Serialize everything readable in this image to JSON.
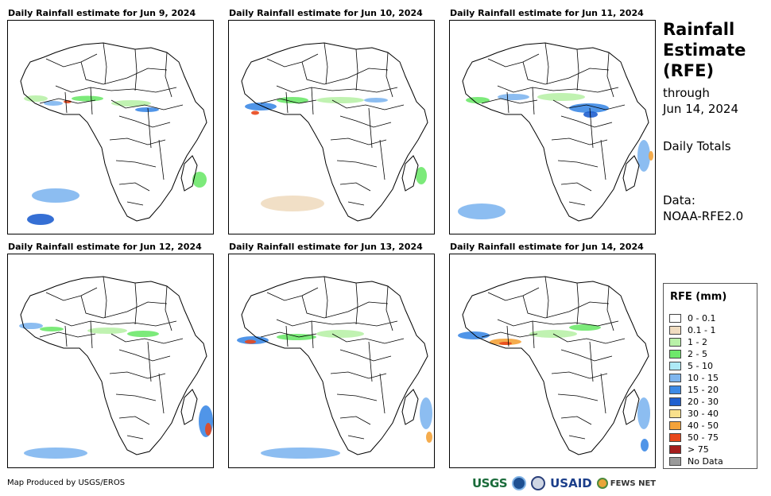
{
  "panels": [
    {
      "title": "Daily Rainfall estimate for Jun 9, 2024"
    },
    {
      "title": "Daily Rainfall estimate for Jun 10, 2024"
    },
    {
      "title": "Daily Rainfall estimate for Jun 11, 2024"
    },
    {
      "title": "Daily Rainfall estimate for Jun 12, 2024"
    },
    {
      "title": "Daily Rainfall estimate for Jun 13, 2024"
    },
    {
      "title": "Daily Rainfall estimate for Jun 14, 2024"
    }
  ],
  "sidebar": {
    "title_line1": "Rainfall",
    "title_line2": "Estimate",
    "title_line3": "(RFE)",
    "through_line1": "through",
    "through_line2": "Jun 14, 2024",
    "totals": "Daily Totals",
    "data_line1": "Data:",
    "data_line2": "NOAA-RFE2.0"
  },
  "legend": {
    "title": "RFE (mm)",
    "items": [
      {
        "label": "0 - 0.1",
        "color": "#ffffff"
      },
      {
        "label": "0.1 - 1",
        "color": "#f0dcc0"
      },
      {
        "label": "1 - 2",
        "color": "#b9f1a8"
      },
      {
        "label": "2 - 5",
        "color": "#6ee86b"
      },
      {
        "label": "5 - 10",
        "color": "#aeeaf6"
      },
      {
        "label": "10 - 15",
        "color": "#7fb6ef"
      },
      {
        "label": "15 - 20",
        "color": "#3d8ae6"
      },
      {
        "label": "20 - 30",
        "color": "#1f5fcf"
      },
      {
        "label": "30 - 40",
        "color": "#f8e08c"
      },
      {
        "label": "40 - 50",
        "color": "#f4a33a"
      },
      {
        "label": "50 - 75",
        "color": "#e8471c"
      },
      {
        "label": "> 75",
        "color": "#a51c1c"
      },
      {
        "label": "No Data",
        "color": "#9a9a9a"
      }
    ]
  },
  "footer": {
    "credit": "Map Produced by USGS/EROS"
  },
  "logos": {
    "usgs": "USGS",
    "usaid": "USAID",
    "fews": "FEWS NET"
  }
}
